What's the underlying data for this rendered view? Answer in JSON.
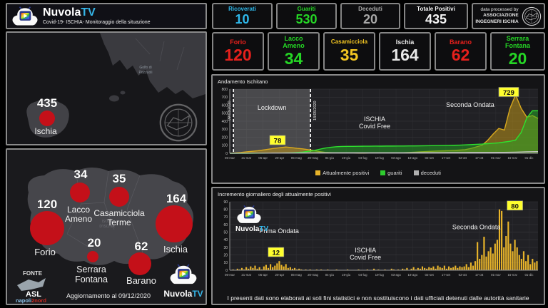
{
  "header": {
    "brand_name": "Nuvola",
    "brand_tv": "TV",
    "subtitle": "Covid-19- ISCHIA- Monitoraggio della situazione"
  },
  "stats_row1": [
    {
      "label": "Ricoverati",
      "value": "10",
      "color": "#2fb9ec"
    },
    {
      "label": "Guariti",
      "value": "530",
      "color": "#25d625"
    },
    {
      "label": "Deceduti",
      "value": "20",
      "color": "#a8a8a8"
    },
    {
      "label": "Totale Positivi",
      "value": "435",
      "color": "#f5f5f5"
    }
  ],
  "credit_box": {
    "line1": "data processed by",
    "line2": "ASSOCIAZIONE",
    "line3": "INGEGNERI ISCHIA"
  },
  "stats_row2": [
    {
      "label": "Forio",
      "value": "120",
      "color": "#e6201c"
    },
    {
      "label": "Lacco Ameno",
      "value": "34",
      "color": "#25d625"
    },
    {
      "label": "Casamicciola",
      "value": "35",
      "color": "#f2c522"
    },
    {
      "label": "Ischia",
      "value": "164",
      "color": "#e8e8e8"
    },
    {
      "label": "Barano",
      "value": "62",
      "color": "#e6201c"
    },
    {
      "label": "Serrara Fontana",
      "value": "20",
      "color": "#25d625"
    }
  ],
  "map_overview": {
    "total": "435",
    "island": "Ischia",
    "sea1": "Golfo di",
    "sea2": "Pozzuoli"
  },
  "map_detail": {
    "center1": "ISOLA",
    "center2": "D'ISCHIA",
    "bubbles": [
      {
        "value": "120",
        "name1": "Forio",
        "name2": ""
      },
      {
        "value": "34",
        "name1": "Lacco",
        "name2": "Ameno"
      },
      {
        "value": "35",
        "name1": "Casamicciola",
        "name2": "Terme"
      },
      {
        "value": "164",
        "name1": "Ischia",
        "name2": ""
      },
      {
        "value": "20",
        "name1": "Serrara",
        "name2": "Fontana"
      },
      {
        "value": "62",
        "name1": "Barano",
        "name2": ""
      }
    ],
    "fonte": "FONTE",
    "asl": "ASL",
    "asl_sub1": "napoli",
    "asl_sub2": "2nord",
    "update": "Aggiornamento al 09/12/2020",
    "brand_name": "Nuvola",
    "brand_tv": "TV"
  },
  "chart_data": [
    {
      "type": "area",
      "title": "Andamento Ischitano",
      "ylim": [
        0,
        800
      ],
      "yticks": [
        0,
        100,
        200,
        300,
        400,
        500,
        600,
        700,
        800
      ],
      "xticklabels": [
        "06-mar",
        "21-mar",
        "05-apr",
        "20-apr",
        "05-mag",
        "20-mag",
        "04-giu",
        "19-giu",
        "04-lug",
        "19-lug",
        "03-ago",
        "18-ago",
        "02-set",
        "17-set",
        "02-ott",
        "17-ott",
        "01-nov",
        "16-nov",
        "01-dic"
      ],
      "grid": true,
      "legend": [
        {
          "label": "Attualmente positivi",
          "color": "#e8b42a"
        },
        {
          "label": "guariti",
          "color": "#2ecc2e"
        },
        {
          "label": "deceduti",
          "color": "#b0b0b0"
        }
      ],
      "lockdown_band": {
        "from_frac": 0.012,
        "to_frac": 0.262,
        "start_label": "09/03/2020",
        "end_label": "18/05/2020",
        "label": "Lockdown"
      },
      "annotations": [
        {
          "text": "78",
          "style": "badge",
          "fx": 0.155,
          "fy": 0.8
        },
        {
          "text": "729",
          "style": "badge",
          "fx": 0.905,
          "fy": 0.05
        },
        {
          "text": "ISCHIA",
          "text2": "Covid Free",
          "style": "label",
          "fx": 0.47,
          "fy": 0.5
        },
        {
          "text": "Seconda Ondata",
          "style": "label",
          "fx": 0.78,
          "fy": 0.28
        }
      ],
      "series": [
        {
          "name": "Attualmente positivi",
          "color": "#d8a81e",
          "fill": "rgba(190,150,25,0.55)",
          "values": [
            2,
            5,
            10,
            18,
            25,
            32,
            42,
            52,
            62,
            70,
            78,
            72,
            62,
            55,
            45,
            35,
            22,
            12,
            8,
            5,
            3,
            2,
            2,
            1,
            1,
            2,
            2,
            3,
            3,
            4,
            5,
            7,
            10,
            14,
            18,
            22,
            25,
            28,
            30,
            33,
            36,
            40,
            45,
            60,
            80,
            100,
            160,
            240,
            310,
            290,
            560,
            729,
            560,
            450,
            470,
            435
          ]
        },
        {
          "name": "guariti",
          "color": "#2ee02e",
          "fill": "rgba(35,170,35,0.50)",
          "values": [
            0,
            0,
            0,
            0,
            0,
            1,
            1,
            2,
            2,
            3,
            4,
            6,
            10,
            15,
            25,
            35,
            50,
            65,
            75,
            82,
            85,
            86,
            86,
            87,
            88,
            88,
            89,
            89,
            90,
            90,
            91,
            91,
            92,
            92,
            93,
            94,
            95,
            96,
            97,
            98,
            100,
            102,
            105,
            108,
            112,
            115,
            120,
            125,
            130,
            140,
            150,
            165,
            260,
            440,
            530,
            530
          ]
        },
        {
          "name": "deceduti",
          "color": "#c8c8c8",
          "fill": "none",
          "values": [
            0,
            0,
            1,
            1,
            2,
            2,
            3,
            3,
            4,
            4,
            5,
            5,
            5,
            6,
            6,
            6,
            7,
            7,
            7,
            7,
            7,
            7,
            7,
            7,
            7,
            7,
            7,
            7,
            7,
            7,
            7,
            7,
            7,
            8,
            8,
            8,
            8,
            8,
            8,
            9,
            9,
            9,
            9,
            10,
            10,
            10,
            11,
            11,
            12,
            12,
            13,
            14,
            16,
            18,
            19,
            20
          ]
        }
      ]
    },
    {
      "type": "bar",
      "title": "Incremento giornaliero degli attualmente positivi",
      "ylim": [
        0,
        90
      ],
      "yticks": [
        0,
        10,
        20,
        30,
        40,
        50,
        60,
        70,
        80,
        90
      ],
      "xticklabels": [
        "06-mar",
        "21-mar",
        "05-apr",
        "20-apr",
        "05-mag",
        "20-mag",
        "04-giu",
        "19-giu",
        "04-lug",
        "19-lug",
        "03-ago",
        "18-ago",
        "02-set",
        "17-set",
        "02-ott",
        "17-ott",
        "01-nov",
        "16-nov",
        "01-dic"
      ],
      "grid": true,
      "bar_color": "#e8b42a",
      "annotations": [
        {
          "text": "Prima Ondata",
          "style": "label",
          "fx": 0.16,
          "fy": 0.46
        },
        {
          "text": "12",
          "style": "badge",
          "fx": 0.15,
          "fy": 0.74
        },
        {
          "text": "ISCHIA",
          "text2": "Covid Free",
          "style": "label",
          "fx": 0.44,
          "fy": 0.74
        },
        {
          "text": "Seconda Ondata",
          "style": "label",
          "fx": 0.8,
          "fy": 0.4
        },
        {
          "text": "80",
          "style": "badge",
          "fx": 0.925,
          "fy": 0.06
        }
      ],
      "values": [
        0,
        1,
        0,
        2,
        1,
        3,
        1,
        4,
        2,
        5,
        3,
        6,
        2,
        4,
        1,
        5,
        7,
        3,
        8,
        4,
        6,
        9,
        12,
        7,
        5,
        8,
        3,
        4,
        2,
        3,
        1,
        2,
        1,
        0,
        1,
        0,
        1,
        0,
        0,
        1,
        0,
        1,
        0,
        0,
        1,
        0,
        0,
        0,
        1,
        0,
        0,
        0,
        0,
        1,
        0,
        0,
        0,
        0,
        1,
        0,
        0,
        0,
        1,
        0,
        0,
        2,
        0,
        1,
        0,
        0,
        1,
        0,
        0,
        2,
        1,
        0,
        1,
        0,
        2,
        1,
        3,
        0,
        2,
        4,
        1,
        3,
        2,
        5,
        3,
        2,
        4,
        3,
        5,
        2,
        6,
        4,
        3,
        6,
        2,
        5,
        3,
        4,
        6,
        3,
        5,
        4,
        5,
        8,
        4,
        10,
        6,
        12,
        37,
        15,
        20,
        44,
        18,
        25,
        30,
        22,
        35,
        40,
        80,
        78,
        30,
        45,
        64,
        35,
        25,
        40,
        30,
        20,
        15,
        25,
        12,
        20,
        8,
        15,
        10,
        12
      ]
    }
  ],
  "footer_disclaimer": "I presenti dati sono elaborati ai soli fini statistici e non sostituiscono i dati ufficiali detenuti dalle autorità sanitarie"
}
